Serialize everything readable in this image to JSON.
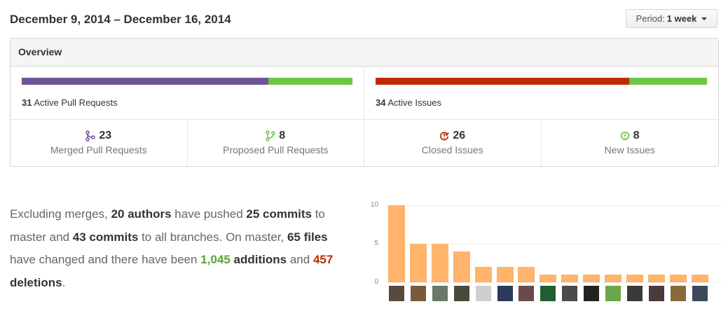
{
  "header": {
    "title": "December 9, 2014 – December 16, 2014",
    "period_label": "Period:",
    "period_value": "1 week"
  },
  "overview": {
    "title": "Overview",
    "pull_requests": {
      "count": "31",
      "label": "Active Pull Requests",
      "merged_fraction": 0.745,
      "colors": [
        "#6e5494",
        "#6cc644"
      ]
    },
    "issues": {
      "count": "34",
      "label": "Active Issues",
      "closed_fraction": 0.765,
      "colors": [
        "#bd2c00",
        "#6cc644"
      ]
    },
    "stats": [
      {
        "icon": "git-merge-icon",
        "value": "23",
        "label": "Merged Pull Requests",
        "color": "#6e5494"
      },
      {
        "icon": "git-pull-request-icon",
        "value": "8",
        "label": "Proposed Pull Requests",
        "color": "#6cc644"
      },
      {
        "icon": "issue-closed-icon",
        "value": "26",
        "label": "Closed Issues",
        "color": "#bd2c00"
      },
      {
        "icon": "issue-opened-icon",
        "value": "8",
        "label": "New Issues",
        "color": "#6cc644"
      }
    ]
  },
  "summary": {
    "p1": "Excluding merges,",
    "authors": "20 authors",
    "p2": "have pushed",
    "commits_master": "25 commits",
    "p3": "to master and",
    "commits_all": "43 commits",
    "p4": "to all branches. On master,",
    "files": "65 files",
    "p5": "have changed and there have been",
    "additions_num": "1,045",
    "additions_word": "additions",
    "p6": "and",
    "deletions_num": "457",
    "deletions_word": "deletions",
    "p7": "."
  },
  "chart_data": {
    "type": "bar",
    "title": "",
    "xlabel": "",
    "ylabel": "",
    "ylim": [
      0,
      10
    ],
    "yticks": [
      "10",
      "5",
      "0"
    ],
    "values": [
      10,
      5,
      5,
      4,
      2,
      2,
      2,
      1,
      1,
      1,
      1,
      1,
      1,
      1,
      1
    ],
    "bar_color": "#ffb36b",
    "avatar_colors": [
      "#5a4a3a",
      "#7a5a3a",
      "#6a7a6a",
      "#4a4a3a",
      "#cfcfcf",
      "#2a3a5a",
      "#6a4a4a",
      "#1f5f2f",
      "#4a4a4a",
      "#222222",
      "#6aa64a",
      "#3a3a3a",
      "#4a3a3a",
      "#8a6a3a",
      "#3a4a5a"
    ]
  }
}
